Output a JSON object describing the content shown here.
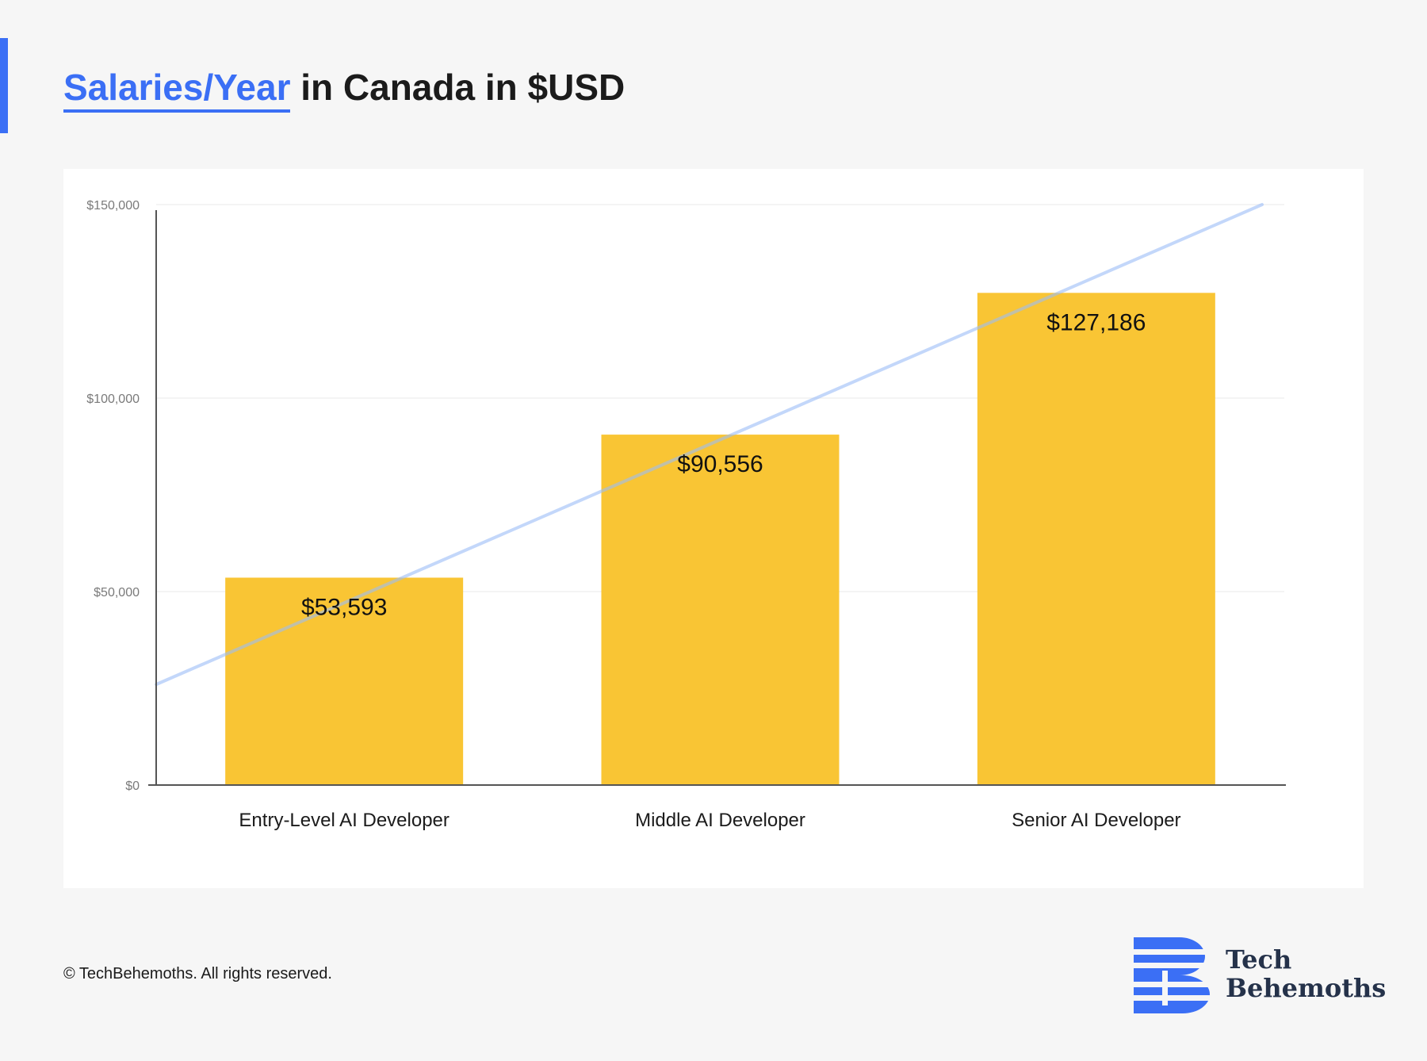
{
  "header": {
    "title_highlight": "Salaries/Year",
    "title_rest": " in Canada in $USD",
    "accent_color": "#3b6ff5"
  },
  "chart_data": {
    "type": "bar",
    "categories": [
      "Entry-Level AI Developer",
      "Middle AI Developer",
      "Senior AI Developer"
    ],
    "values": [
      53593,
      90556,
      127186
    ],
    "value_labels": [
      "$53,593",
      "$90,556",
      "$127,186"
    ],
    "ylim": [
      0,
      150000
    ],
    "yticks": [
      0,
      50000,
      100000,
      150000
    ],
    "ytick_labels": [
      "$0",
      "$50,000",
      "$100,000",
      "$150,000"
    ],
    "trendline": {
      "start_value": 26000,
      "end_value": 150000
    },
    "grid": true,
    "bar_color": "#f9c534",
    "trend_color": "#9bbcf7"
  },
  "footer": {
    "copyright": "© TechBehemoths. All rights reserved.",
    "logo_line1": "Tech",
    "logo_line2": "Behemoths",
    "logo_color": "#3b6ff5"
  }
}
